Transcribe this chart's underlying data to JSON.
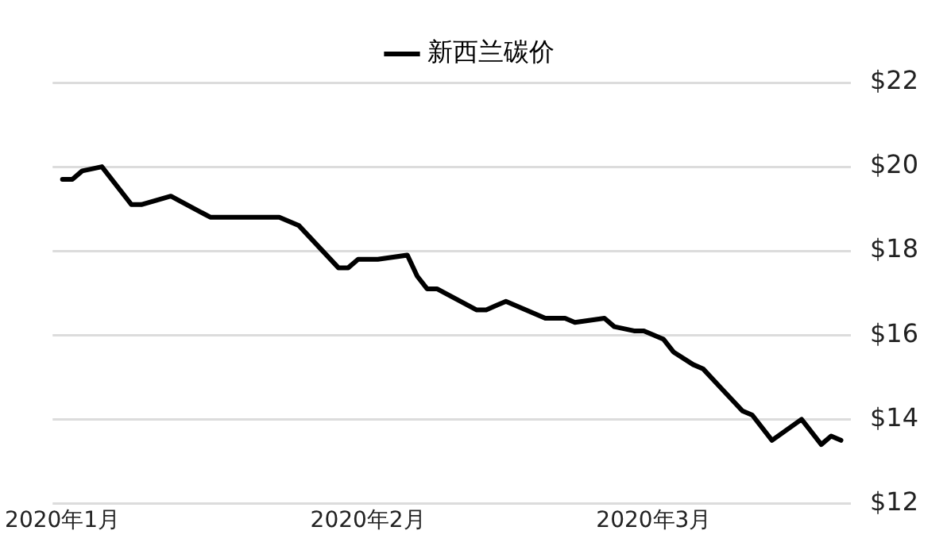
{
  "chart_data": {
    "type": "line",
    "x": [
      "2020-01-01",
      "2020-01-02",
      "2020-01-03",
      "2020-01-05",
      "2020-01-08",
      "2020-01-09",
      "2020-01-12",
      "2020-01-16",
      "2020-01-23",
      "2020-01-25",
      "2020-01-29",
      "2020-01-30",
      "2020-01-31",
      "2020-02-02",
      "2020-02-05",
      "2020-02-06",
      "2020-02-07",
      "2020-02-08",
      "2020-02-12",
      "2020-02-13",
      "2020-02-14",
      "2020-02-15",
      "2020-02-19",
      "2020-02-21",
      "2020-02-22",
      "2020-02-25",
      "2020-02-26",
      "2020-02-28",
      "2020-02-29",
      "2020-03-02",
      "2020-03-03",
      "2020-03-05",
      "2020-03-06",
      "2020-03-08",
      "2020-03-10",
      "2020-03-11",
      "2020-03-13",
      "2020-03-16",
      "2020-03-18",
      "2020-03-19",
      "2020-03-20"
    ],
    "series": [
      {
        "name": "新西兰碳价",
        "color": "#000000",
        "values": [
          19.7,
          19.7,
          19.9,
          20.0,
          19.1,
          19.1,
          19.3,
          18.8,
          18.8,
          18.6,
          17.6,
          17.6,
          17.8,
          17.8,
          17.9,
          17.4,
          17.1,
          17.1,
          16.6,
          16.6,
          16.7,
          16.8,
          16.4,
          16.4,
          16.3,
          16.4,
          16.2,
          16.1,
          16.1,
          15.9,
          15.6,
          15.3,
          15.2,
          14.7,
          14.2,
          14.1,
          13.5,
          14.0,
          13.4,
          13.6,
          13.5
        ]
      }
    ],
    "xlim": [
      "2019-12-31",
      "2020-03-21"
    ],
    "xticks": [
      {
        "value": "2020-01-01",
        "label": "2020年1月"
      },
      {
        "value": "2020-02-01",
        "label": "2020年2月"
      },
      {
        "value": "2020-03-01",
        "label": "2020年3月"
      }
    ],
    "ylim": [
      12,
      22
    ],
    "yticks": [
      {
        "value": 12,
        "label": "$12"
      },
      {
        "value": 14,
        "label": "$14"
      },
      {
        "value": 16,
        "label": "$16"
      },
      {
        "value": 18,
        "label": "$18"
      },
      {
        "value": 20,
        "label": "$20"
      },
      {
        "value": 22,
        "label": "$22"
      }
    ],
    "grid": "y",
    "legend": "top",
    "marker": "none",
    "line_style": "solid"
  }
}
